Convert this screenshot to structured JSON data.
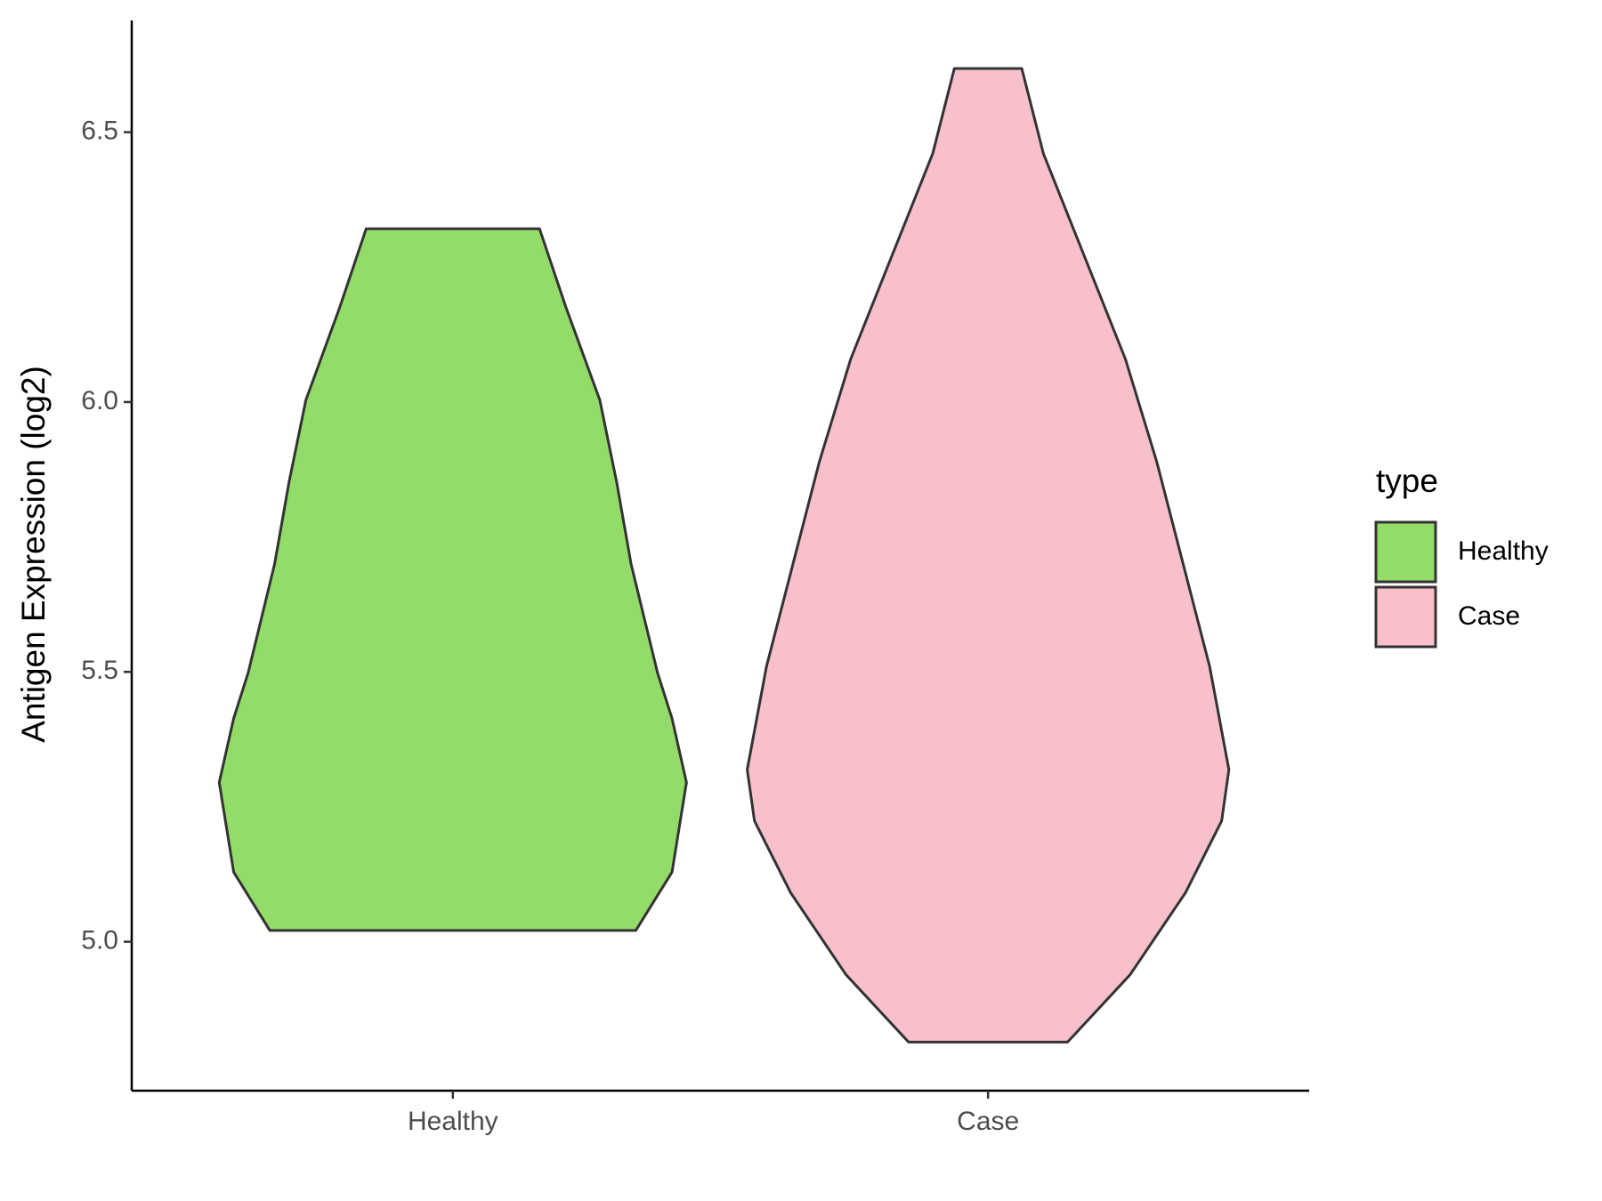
{
  "chart_data": {
    "type": "violin",
    "y_label": "Antigen Expression (log2)",
    "categories": [
      "Healthy",
      "Case"
    ],
    "legend_title": "type",
    "legend_position": "right",
    "series": [
      {
        "name": "Healthy",
        "color": "#93dc6a",
        "y": [
          5.021,
          5.129,
          5.295,
          5.414,
          5.498,
          5.7,
          5.852,
          6.004,
          6.175,
          6.321
        ],
        "density": [
          0.76,
          0.91,
          0.97,
          0.91,
          0.85,
          0.74,
          0.68,
          0.61,
          0.47,
          0.36
        ]
      },
      {
        "name": "Case",
        "color": "#f7c0cb",
        "y": [
          4.814,
          4.939,
          5.091,
          5.224,
          5.319,
          5.51,
          5.7,
          5.89,
          6.08,
          6.27,
          6.46,
          6.618
        ],
        "density": [
          0.33,
          0.59,
          0.82,
          0.97,
          1.0,
          0.92,
          0.81,
          0.7,
          0.57,
          0.4,
          0.23,
          0.14
        ]
      }
    ],
    "ylim": [
      4.724,
      6.707
    ],
    "yticks": [
      {
        "value": 5,
        "label": "5.0"
      },
      5.5,
      {
        "value": 6,
        "label": "6.0"
      },
      6.5
    ],
    "grid": false
  }
}
